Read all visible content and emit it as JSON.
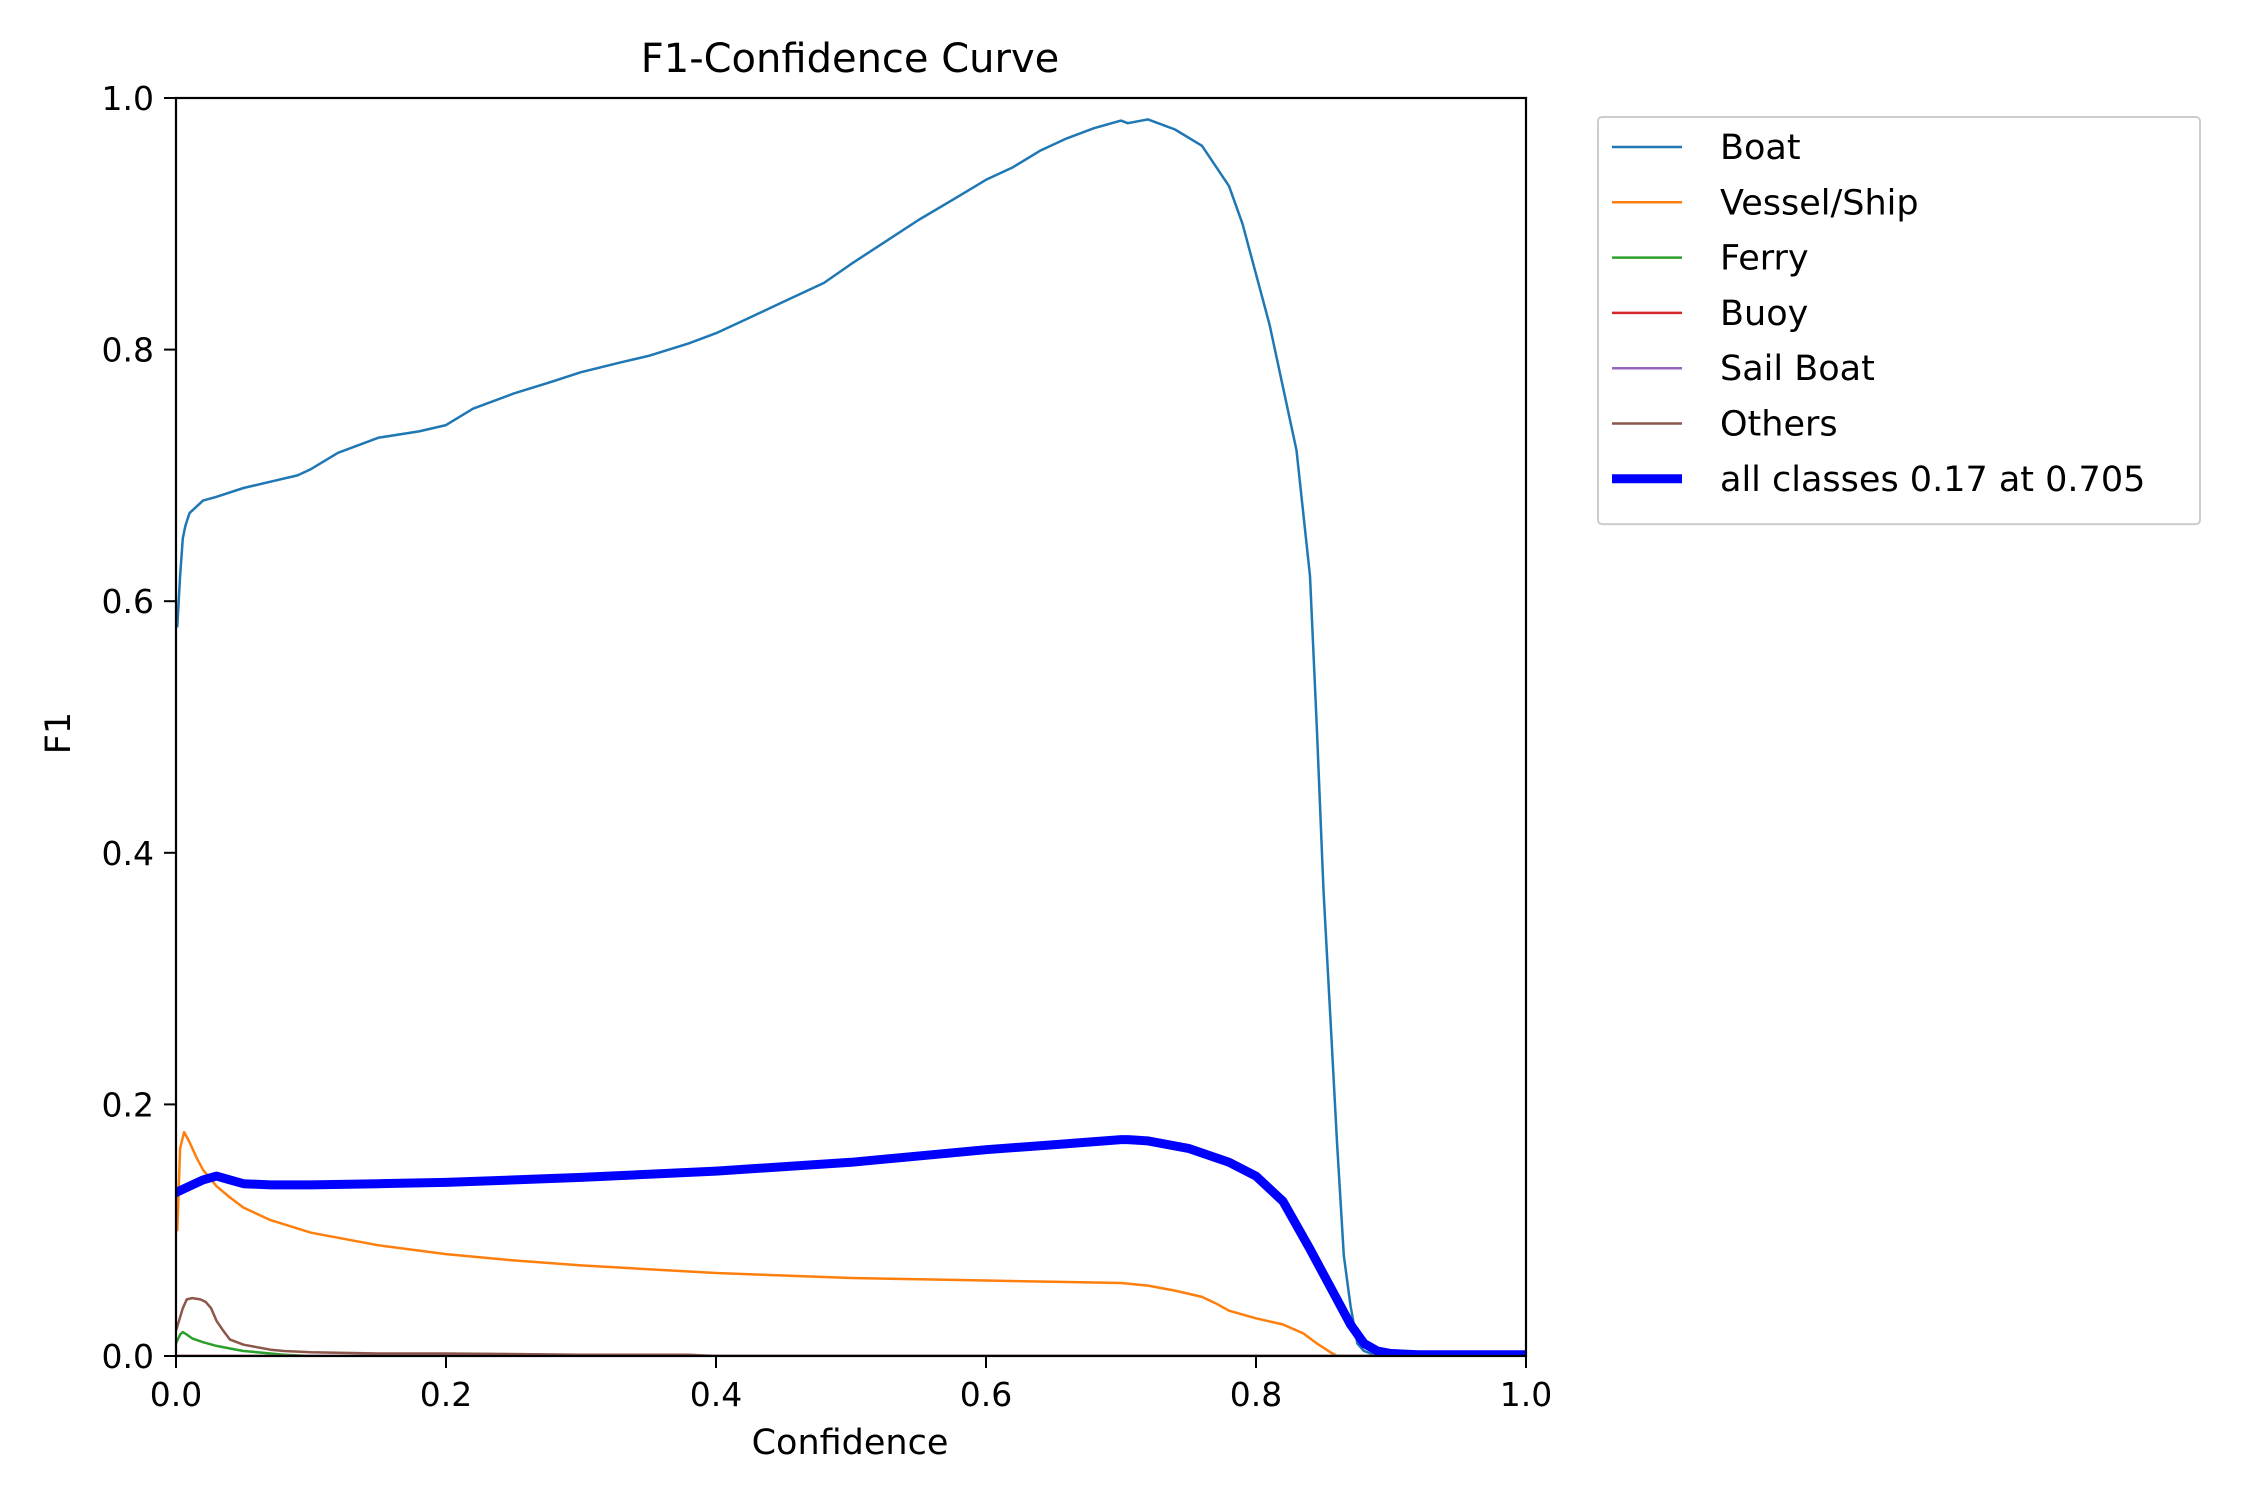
{
  "chart_data": {
    "type": "line",
    "title": "F1-Confidence Curve",
    "xlabel": "Confidence",
    "ylabel": "F1",
    "xlim": [
      0.0,
      1.0
    ],
    "ylim": [
      0.0,
      1.0
    ],
    "xticks": [
      "0.0",
      "0.2",
      "0.4",
      "0.6",
      "0.8",
      "1.0"
    ],
    "yticks": [
      "0.0",
      "0.2",
      "0.4",
      "0.6",
      "0.8",
      "1.0"
    ],
    "grid": false,
    "legend_position": "outside-upper-right",
    "series": [
      {
        "name": "Boat",
        "color": "#1f77b4",
        "x": [
          0.001,
          0.003,
          0.005,
          0.007,
          0.01,
          0.015,
          0.02,
          0.03,
          0.05,
          0.07,
          0.09,
          0.1,
          0.12,
          0.15,
          0.18,
          0.2,
          0.22,
          0.25,
          0.28,
          0.3,
          0.33,
          0.35,
          0.38,
          0.4,
          0.42,
          0.45,
          0.48,
          0.5,
          0.52,
          0.55,
          0.58,
          0.6,
          0.62,
          0.64,
          0.66,
          0.68,
          0.7,
          0.705,
          0.72,
          0.74,
          0.76,
          0.78,
          0.79,
          0.8,
          0.81,
          0.82,
          0.83,
          0.84,
          0.845,
          0.85,
          0.855,
          0.86,
          0.865,
          0.87,
          0.875,
          0.88,
          0.885,
          0.89,
          0.9,
          0.92,
          0.95,
          1.0
        ],
        "values": [
          0.58,
          0.62,
          0.65,
          0.66,
          0.67,
          0.675,
          0.68,
          0.683,
          0.69,
          0.695,
          0.7,
          0.705,
          0.718,
          0.73,
          0.735,
          0.74,
          0.753,
          0.765,
          0.775,
          0.782,
          0.79,
          0.795,
          0.805,
          0.813,
          0.823,
          0.838,
          0.853,
          0.868,
          0.882,
          0.903,
          0.922,
          0.935,
          0.945,
          0.958,
          0.968,
          0.976,
          0.982,
          0.98,
          0.983,
          0.975,
          0.962,
          0.93,
          0.9,
          0.86,
          0.82,
          0.77,
          0.72,
          0.62,
          0.5,
          0.37,
          0.27,
          0.17,
          0.08,
          0.04,
          0.01,
          0.004,
          0.002,
          0.001,
          0.001,
          0.001,
          0.001,
          0.001
        ]
      },
      {
        "name": "Vessel/Ship",
        "color": "#ff7f0e",
        "x": [
          0.001,
          0.003,
          0.006,
          0.01,
          0.015,
          0.02,
          0.03,
          0.04,
          0.05,
          0.07,
          0.1,
          0.15,
          0.2,
          0.25,
          0.3,
          0.35,
          0.4,
          0.45,
          0.5,
          0.55,
          0.6,
          0.65,
          0.7,
          0.72,
          0.74,
          0.76,
          0.77,
          0.78,
          0.8,
          0.82,
          0.835,
          0.845,
          0.855,
          0.86,
          1.0
        ],
        "values": [
          0.1,
          0.165,
          0.178,
          0.17,
          0.158,
          0.148,
          0.135,
          0.126,
          0.118,
          0.108,
          0.098,
          0.088,
          0.081,
          0.076,
          0.072,
          0.069,
          0.066,
          0.064,
          0.062,
          0.061,
          0.06,
          0.059,
          0.058,
          0.056,
          0.052,
          0.047,
          0.042,
          0.036,
          0.03,
          0.025,
          0.018,
          0.01,
          0.003,
          0.0,
          0.0
        ]
      },
      {
        "name": "Ferry",
        "color": "#2ca02c",
        "x": [
          0.0,
          0.003,
          0.005,
          0.008,
          0.012,
          0.02,
          0.03,
          0.04,
          0.05,
          0.06,
          0.07,
          0.08,
          0.1,
          1.0
        ],
        "values": [
          0.01,
          0.017,
          0.019,
          0.017,
          0.014,
          0.011,
          0.008,
          0.006,
          0.004,
          0.003,
          0.002,
          0.001,
          0.0,
          0.0
        ]
      },
      {
        "name": "Buoy",
        "color": "#d62728",
        "x": [
          0.0,
          1.0
        ],
        "values": [
          0.0,
          0.0
        ]
      },
      {
        "name": "Sail Boat",
        "color": "#9467bd",
        "x": [
          0.0,
          1.0
        ],
        "values": [
          0.0,
          0.0
        ]
      },
      {
        "name": "Others",
        "color": "#8c564b",
        "x": [
          0.0,
          0.005,
          0.008,
          0.012,
          0.018,
          0.022,
          0.026,
          0.03,
          0.035,
          0.04,
          0.05,
          0.06,
          0.07,
          0.08,
          0.1,
          0.15,
          0.2,
          0.3,
          0.38,
          0.4,
          1.0
        ],
        "values": [
          0.02,
          0.038,
          0.045,
          0.046,
          0.045,
          0.043,
          0.038,
          0.028,
          0.02,
          0.013,
          0.009,
          0.007,
          0.005,
          0.004,
          0.003,
          0.002,
          0.002,
          0.001,
          0.001,
          0.0,
          0.0
        ]
      },
      {
        "name": "all classes 0.17 at 0.705",
        "color": "#0000ff",
        "x": [
          0.0,
          0.01,
          0.02,
          0.03,
          0.04,
          0.05,
          0.07,
          0.1,
          0.15,
          0.2,
          0.3,
          0.4,
          0.5,
          0.6,
          0.65,
          0.7,
          0.705,
          0.72,
          0.75,
          0.78,
          0.8,
          0.82,
          0.84,
          0.86,
          0.87,
          0.88,
          0.89,
          0.9,
          0.92,
          0.95,
          1.0
        ],
        "values": [
          0.13,
          0.135,
          0.14,
          0.143,
          0.14,
          0.137,
          0.136,
          0.136,
          0.137,
          0.138,
          0.142,
          0.147,
          0.154,
          0.164,
          0.168,
          0.172,
          0.172,
          0.171,
          0.165,
          0.154,
          0.143,
          0.123,
          0.085,
          0.045,
          0.025,
          0.01,
          0.004,
          0.002,
          0.001,
          0.001,
          0.001
        ],
        "line_width": "thick"
      }
    ]
  }
}
